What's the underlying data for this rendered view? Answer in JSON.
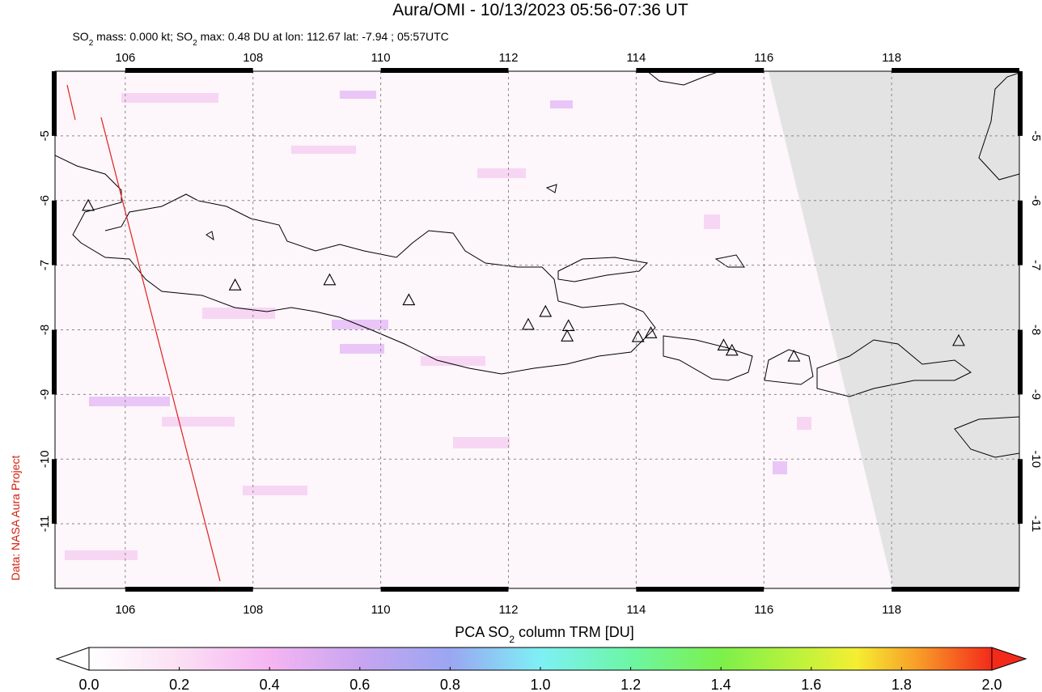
{
  "map": {
    "title": "Aura/OMI - 10/13/2023 05:56-07:36 UT",
    "subtitle": [
      "SO",
      "2",
      " mass: 0.000 kt; SO",
      "2",
      " max: 0.48 DU at lon: 112.67 lat: -7.94 ; 05:57UTC"
    ],
    "xlim": [
      104.9,
      120
    ],
    "ylim": [
      -12,
      -4
    ],
    "xticks": [
      106,
      108,
      110,
      112,
      114,
      116,
      118
    ],
    "yticks": [
      -5,
      -6,
      -7,
      -8,
      -9,
      -10,
      -11
    ],
    "grid": true,
    "volcanoes": {
      "lon": [
        105.42,
        107.72,
        109.2,
        110.44,
        112.31,
        112.58,
        112.94,
        112.92,
        114.03,
        114.23,
        115.37,
        115.5,
        116.47,
        119.05
      ],
      "lat": [
        -6.09,
        -7.32,
        -7.24,
        -7.55,
        -7.93,
        -7.73,
        -7.95,
        -8.11,
        -8.12,
        -8.06,
        -8.25,
        -8.33,
        -8.42,
        -8.18
      ]
    },
    "colorbar": {
      "label": [
        "PCA SO",
        "2",
        " column TRM [DU]"
      ],
      "lim": [
        0,
        2
      ],
      "ticks": [
        {
          "value": 0,
          "label": "0.0"
        },
        0.2,
        0.4,
        0.6,
        0.8,
        {
          "value": 1,
          "label": "1.0"
        },
        1.2,
        1.4,
        1.6,
        1.8,
        {
          "value": 2,
          "label": "2.0"
        }
      ]
    },
    "credit": "Data: NASA Aura Project"
  }
}
